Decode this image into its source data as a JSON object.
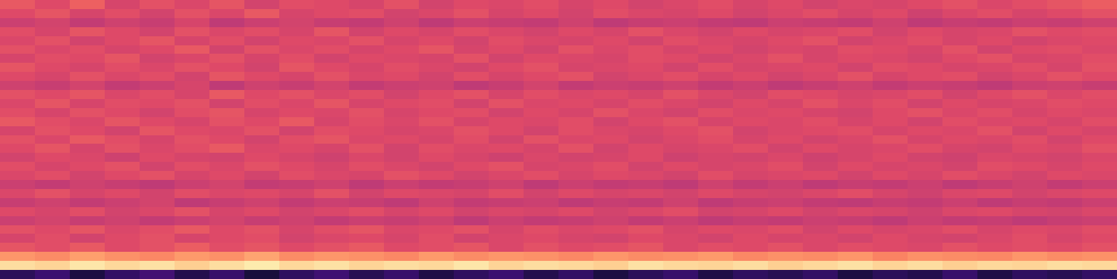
{
  "chart_data": {
    "type": "heatmap",
    "color": "magma",
    "tick_labels": false,
    "zlim": [
      0,
      100
    ],
    "cells": [
      [
        64,
        60,
        66,
        58,
        62,
        59,
        63,
        57,
        61,
        60,
        58,
        62,
        57,
        60,
        59,
        61,
        58,
        60,
        57,
        59,
        61,
        58,
        60,
        57,
        59,
        58,
        60,
        62,
        59,
        61,
        63,
        65
      ],
      [
        60,
        63,
        58,
        61,
        57,
        62,
        59,
        64,
        58,
        60,
        61,
        57,
        59,
        62,
        58,
        60,
        57,
        61,
        59,
        58,
        60,
        57,
        59,
        61,
        58,
        60,
        56,
        59,
        61,
        58,
        60,
        62
      ],
      [
        55,
        57,
        53,
        56,
        54,
        58,
        52,
        55,
        57,
        54,
        53,
        56,
        52,
        55,
        54,
        53,
        56,
        52,
        54,
        55,
        53,
        52,
        55,
        54,
        53,
        56,
        52,
        54,
        53,
        55,
        54,
        56
      ],
      [
        61,
        58,
        63,
        60,
        57,
        62,
        59,
        61,
        58,
        63,
        57,
        60,
        58,
        61,
        59,
        57,
        60,
        58,
        62,
        59,
        57,
        60,
        58,
        59,
        61,
        57,
        60,
        58,
        59,
        62,
        60,
        61
      ],
      [
        59,
        62,
        57,
        60,
        63,
        58,
        61,
        57,
        60,
        59,
        62,
        58,
        60,
        57,
        61,
        59,
        58,
        60,
        57,
        61,
        59,
        58,
        60,
        62,
        57,
        59,
        61,
        58,
        60,
        57,
        59,
        60
      ],
      [
        62,
        59,
        61,
        58,
        60,
        64,
        57,
        62,
        59,
        61,
        58,
        60,
        63,
        58,
        60,
        57,
        62,
        59,
        61,
        58,
        60,
        57,
        59,
        58,
        61,
        60,
        58,
        62,
        57,
        60,
        61,
        59
      ],
      [
        58,
        61,
        60,
        63,
        57,
        59,
        62,
        58,
        61,
        57,
        60,
        59,
        58,
        62,
        57,
        60,
        59,
        58,
        61,
        60,
        57,
        59,
        62,
        58,
        60,
        59,
        57,
        60,
        62,
        58,
        59,
        61
      ],
      [
        63,
        60,
        58,
        61,
        59,
        62,
        60,
        57,
        63,
        60,
        58,
        61,
        59,
        57,
        60,
        62,
        58,
        59,
        60,
        57,
        61,
        58,
        59,
        60,
        57,
        61,
        60,
        58,
        59,
        61,
        58,
        62
      ],
      [
        60,
        58,
        62,
        59,
        61,
        57,
        63,
        60,
        58,
        62,
        59,
        60,
        57,
        61,
        58,
        60,
        62,
        57,
        59,
        61,
        58,
        60,
        57,
        59,
        62,
        58,
        60,
        61,
        57,
        59,
        62,
        60
      ],
      [
        56,
        54,
        57,
        53,
        55,
        58,
        52,
        56,
        54,
        57,
        53,
        55,
        56,
        52,
        54,
        57,
        53,
        55,
        54,
        56,
        53,
        55,
        52,
        54,
        56,
        53,
        55,
        54,
        52,
        55,
        56,
        54
      ],
      [
        62,
        60,
        63,
        59,
        61,
        58,
        64,
        60,
        62,
        59,
        61,
        57,
        60,
        62,
        58,
        61,
        59,
        60,
        58,
        62,
        59,
        57,
        61,
        60,
        58,
        59,
        61,
        57,
        60,
        62,
        59,
        61
      ],
      [
        59,
        63,
        58,
        61,
        60,
        62,
        57,
        61,
        59,
        63,
        58,
        60,
        61,
        57,
        62,
        59,
        60,
        58,
        61,
        59,
        57,
        60,
        58,
        62,
        59,
        61,
        57,
        60,
        58,
        59,
        61,
        60
      ],
      [
        61,
        58,
        62,
        60,
        57,
        61,
        63,
        58,
        60,
        59,
        62,
        58,
        60,
        61,
        57,
        60,
        58,
        62,
        59,
        57,
        61,
        59,
        60,
        58,
        57,
        60,
        62,
        59,
        61,
        58,
        60,
        59
      ],
      [
        64,
        61,
        59,
        63,
        60,
        58,
        62,
        60,
        64,
        58,
        61,
        59,
        62,
        58,
        60,
        59,
        61,
        57,
        60,
        62,
        58,
        60,
        59,
        61,
        58,
        60,
        57,
        61,
        59,
        60,
        58,
        61
      ],
      [
        58,
        62,
        60,
        57,
        63,
        60,
        59,
        62,
        57,
        61,
        60,
        58,
        59,
        62,
        60,
        57,
        61,
        59,
        58,
        60,
        62,
        57,
        59,
        60,
        61,
        58,
        60,
        59,
        62,
        57,
        60,
        58
      ],
      [
        62,
        59,
        64,
        61,
        58,
        62,
        60,
        57,
        61,
        63,
        59,
        60,
        58,
        61,
        57,
        62,
        59,
        60,
        57,
        59,
        61,
        58,
        60,
        57,
        59,
        62,
        58,
        60,
        59,
        61,
        57,
        60
      ],
      [
        60,
        63,
        58,
        62,
        59,
        61,
        64,
        59,
        60,
        58,
        62,
        57,
        61,
        59,
        60,
        58,
        62,
        57,
        60,
        58,
        59,
        61,
        57,
        60,
        58,
        59,
        61,
        58,
        57,
        60,
        59,
        62
      ],
      [
        57,
        60,
        59,
        56,
        60,
        58,
        57,
        60,
        58,
        56,
        59,
        57,
        60,
        58,
        56,
        59,
        57,
        58,
        60,
        56,
        58,
        57,
        59,
        56,
        58,
        60,
        57,
        56,
        59,
        58,
        57,
        59
      ],
      [
        61,
        58,
        60,
        62,
        57,
        61,
        59,
        62,
        60,
        58,
        61,
        59,
        57,
        60,
        62,
        58,
        59,
        61,
        57,
        60,
        58,
        59,
        61,
        57,
        60,
        58,
        59,
        57,
        61,
        60,
        58,
        60
      ],
      [
        59,
        61,
        57,
        60,
        62,
        58,
        60,
        57,
        61,
        59,
        58,
        62,
        60,
        57,
        59,
        61,
        58,
        60,
        59,
        57,
        61,
        58,
        59,
        60,
        57,
        60,
        58,
        61,
        59,
        57,
        60,
        59
      ],
      [
        55,
        53,
        56,
        54,
        52,
        55,
        57,
        53,
        54,
        56,
        52,
        55,
        53,
        54,
        56,
        52,
        55,
        53,
        54,
        52,
        56,
        53,
        55,
        52,
        54,
        53,
        55,
        52,
        54,
        56,
        53,
        55
      ],
      [
        59,
        62,
        58,
        60,
        57,
        61,
        59,
        60,
        58,
        62,
        57,
        60,
        59,
        58,
        61,
        57,
        60,
        58,
        59,
        57,
        60,
        58,
        57,
        59,
        61,
        58,
        56,
        59,
        60,
        57,
        59,
        60
      ],
      [
        54,
        56,
        53,
        55,
        57,
        52,
        54,
        56,
        53,
        55,
        54,
        52,
        56,
        53,
        54,
        55,
        52,
        54,
        53,
        56,
        52,
        54,
        55,
        53,
        52,
        54,
        53,
        55,
        52,
        54,
        53,
        55
      ],
      [
        60,
        58,
        61,
        57,
        59,
        62,
        58,
        60,
        57,
        59,
        61,
        58,
        60,
        57,
        59,
        58,
        60,
        57,
        59,
        61,
        57,
        58,
        60,
        57,
        59,
        58,
        56,
        59,
        60,
        58,
        57,
        59
      ],
      [
        55,
        57,
        54,
        56,
        53,
        55,
        57,
        54,
        56,
        53,
        55,
        54,
        56,
        52,
        55,
        53,
        54,
        56,
        53,
        55,
        52,
        54,
        53,
        55,
        54,
        52,
        55,
        53,
        54,
        52,
        54,
        55
      ],
      [
        62,
        60,
        63,
        59,
        61,
        64,
        60,
        62,
        58,
        61,
        63,
        59,
        60,
        62,
        58,
        61,
        59,
        60,
        62,
        58,
        60,
        59,
        61,
        57,
        60,
        58,
        59,
        61,
        58,
        60,
        59,
        61
      ],
      [
        58,
        61,
        57,
        60,
        62,
        58,
        60,
        61,
        57,
        59,
        60,
        58,
        61,
        57,
        59,
        60,
        58,
        57,
        60,
        59,
        57,
        60,
        58,
        59,
        57,
        60,
        58,
        57,
        59,
        61,
        58,
        60
      ],
      [
        63,
        61,
        64,
        60,
        62,
        65,
        61,
        63,
        60,
        62,
        64,
        60,
        61,
        63,
        59,
        62,
        60,
        61,
        63,
        59,
        61,
        60,
        62,
        59,
        61,
        60,
        59,
        62,
        60,
        61,
        60,
        62
      ],
      [
        78,
        76,
        80,
        77,
        75,
        79,
        77,
        81,
        76,
        78,
        77,
        75,
        79,
        76,
        78,
        77,
        75,
        78,
        76,
        77,
        79,
        75,
        77,
        76,
        78,
        74,
        77,
        76,
        75,
        78,
        76,
        77
      ],
      [
        93,
        91,
        95,
        92,
        94,
        90,
        93,
        96,
        92,
        94,
        91,
        93,
        92,
        95,
        91,
        93,
        92,
        90,
        94,
        92,
        91,
        93,
        90,
        92,
        94,
        91,
        93,
        90,
        92,
        91,
        93,
        92
      ],
      [
        16,
        20,
        12,
        18,
        22,
        14,
        19,
        11,
        17,
        21,
        15,
        19,
        13,
        17,
        20,
        14,
        18,
        12,
        16,
        19,
        13,
        17,
        15,
        18,
        12,
        16,
        14,
        19,
        13,
        17,
        15,
        18
      ]
    ]
  }
}
